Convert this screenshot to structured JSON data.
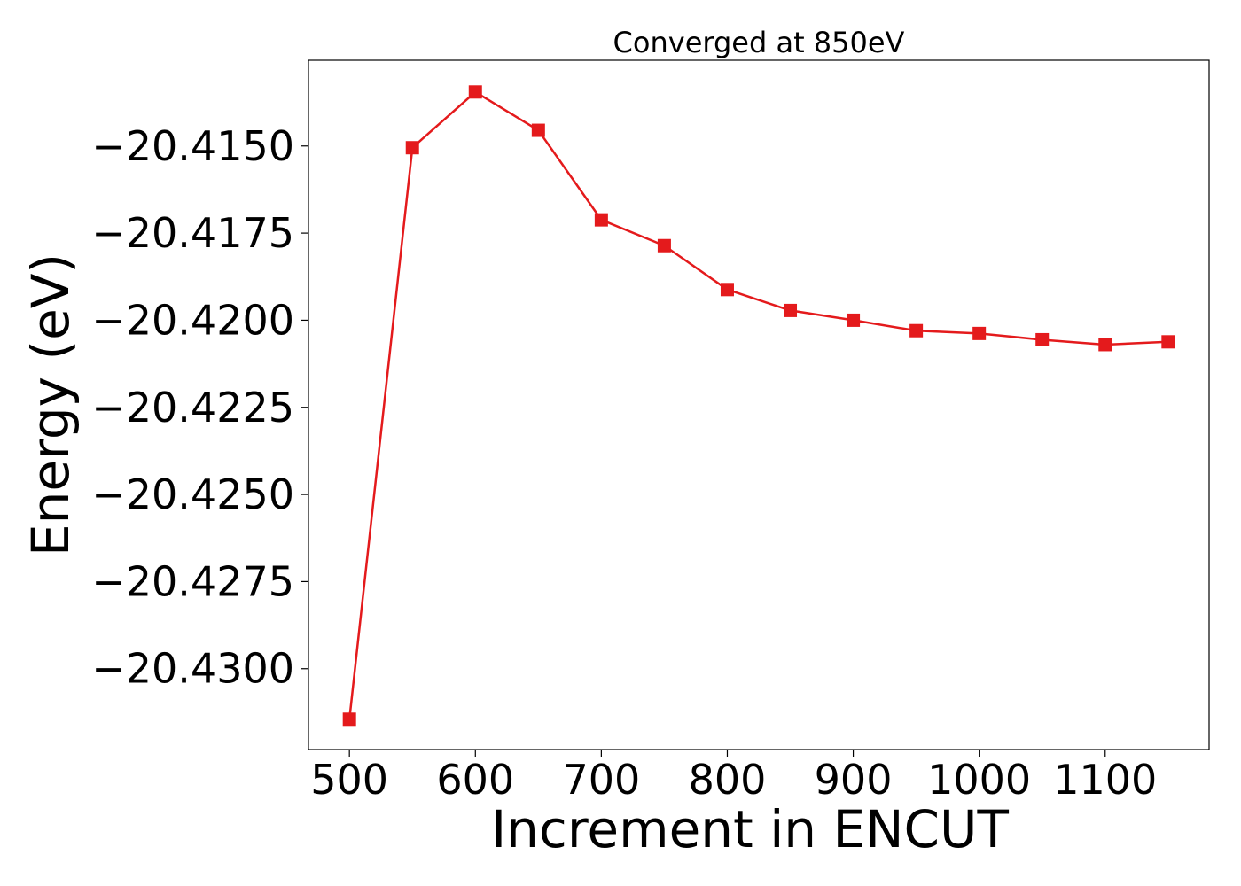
{
  "chart_data": {
    "type": "line",
    "title": "Converged at 850eV",
    "xlabel": "Increment in ENCUT",
    "ylabel": "Energy (eV)",
    "x": [
      500,
      550,
      600,
      650,
      700,
      750,
      800,
      850,
      900,
      950,
      1000,
      1050,
      1100,
      1150
    ],
    "series": [
      {
        "values": [
          -20.43145,
          -20.41505,
          -20.41345,
          -20.41455,
          -20.41712,
          -20.41786,
          -20.41912,
          -20.41972,
          -20.42,
          -20.4203,
          -20.42038,
          -20.42056,
          -20.4207,
          -20.42062
        ],
        "color": "#e41a1c",
        "marker": "square"
      }
    ],
    "xlim": [
      467.5,
      1182.5
    ],
    "ylim": [
      -20.43232,
      -20.41254
    ],
    "xticks": [
      500,
      600,
      700,
      800,
      900,
      1000,
      1100
    ],
    "xtick_labels": [
      "500",
      "600",
      "700",
      "800",
      "900",
      "1000",
      "1100"
    ],
    "yticks": [
      -20.415,
      -20.4175,
      -20.42,
      -20.4225,
      -20.425,
      -20.4275,
      -20.43
    ],
    "ytick_labels": [
      "−20.4150",
      "−20.4175",
      "−20.4200",
      "−20.4225",
      "−20.4250",
      "−20.4275",
      "−20.4300"
    ],
    "grid": false,
    "legend": false
  }
}
